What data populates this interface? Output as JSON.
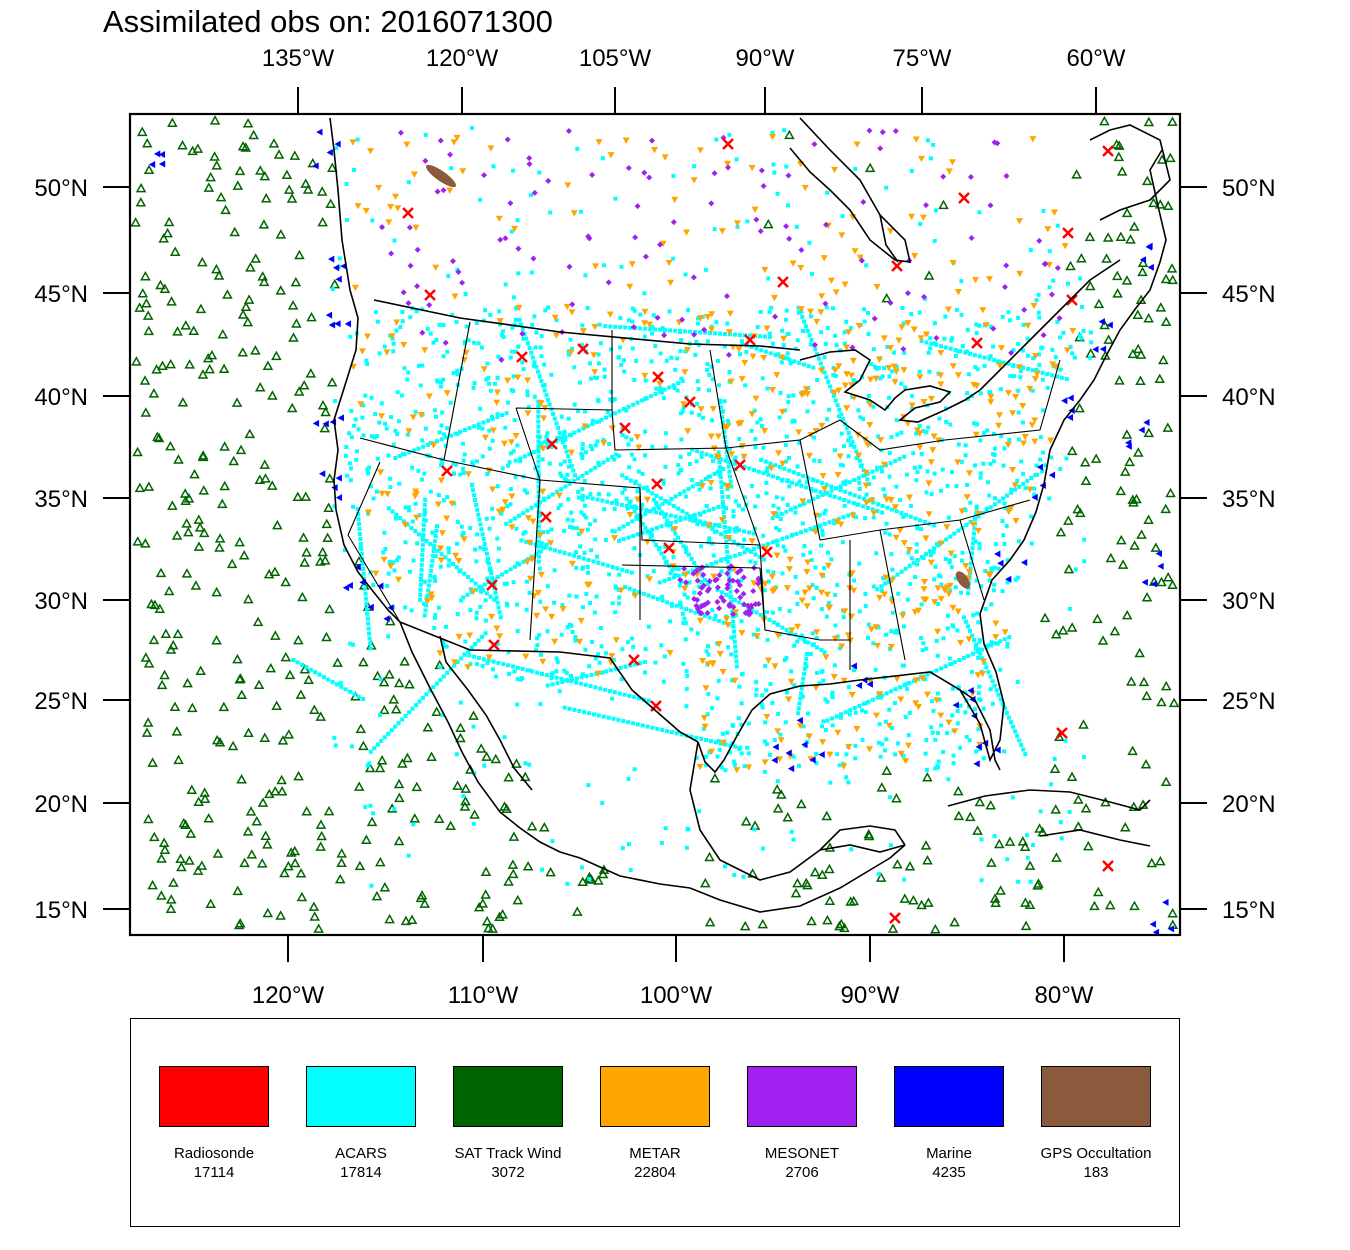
{
  "title": "Assimilated obs on: 2016071300",
  "map": {
    "top_lon_labels": [
      "135°W",
      "120°W",
      "105°W",
      "90°W",
      "75°W",
      "60°W"
    ],
    "bottom_lon_labels": [
      "120°W",
      "110°W",
      "100°W",
      "90°W",
      "80°W"
    ],
    "lat_labels": [
      "50°N",
      "45°N",
      "40°N",
      "35°N",
      "30°N",
      "25°N",
      "20°N",
      "15°N"
    ],
    "colors": {
      "coast": "#000000",
      "frame": "#000000"
    }
  },
  "legend": [
    {
      "label": "Radiosonde",
      "count": "17114",
      "color": "#ff0000",
      "marker": "x-mark-icon"
    },
    {
      "label": "ACARS",
      "count": "17814",
      "color": "#00ffff",
      "marker": "square-dot-icon"
    },
    {
      "label": "SAT Track Wind",
      "count": "3072",
      "color": "#006400",
      "marker": "triangle-up-icon"
    },
    {
      "label": "METAR",
      "count": "22804",
      "color": "#ffa500",
      "marker": "triangle-down-icon"
    },
    {
      "label": "MESONET",
      "count": "2706",
      "color": "#a020f0",
      "marker": "diamond-icon"
    },
    {
      "label": "Marine",
      "count": "4235",
      "color": "#0000ff",
      "marker": "triangle-left-icon"
    },
    {
      "label": "GPS Occultation",
      "count": "183",
      "color": "#8b5a3c",
      "marker": "ellipse-icon"
    }
  ]
}
